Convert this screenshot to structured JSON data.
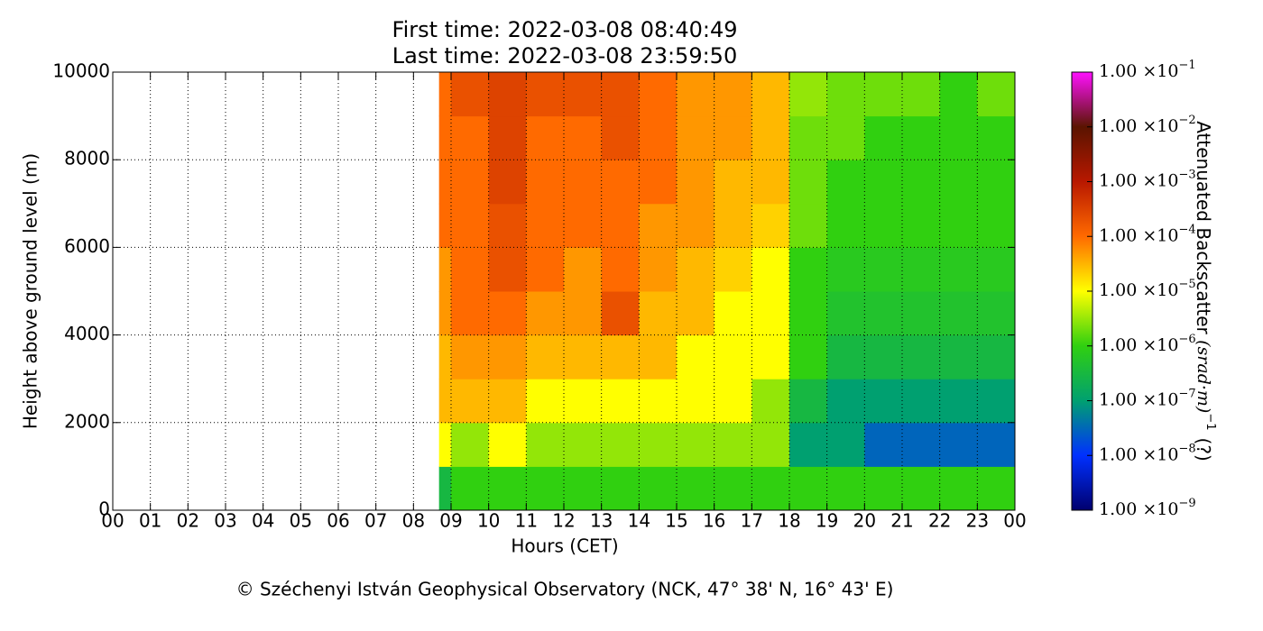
{
  "chart_data": {
    "type": "heatmap",
    "title": "First time: 2022-03-08 08:40:49",
    "subtitle": "Last time: 2022-03-08 23:59:50",
    "x_label": "Hours (CET)",
    "y_label": "Height above ground level (m)",
    "caption": "© Széchenyi István Geophysical Observatory (NCK, 47° 38' N, 16° 43' E)",
    "xlim": [
      0,
      24
    ],
    "ylim": [
      0,
      10000
    ],
    "xticks": [
      {
        "value": 0,
        "label": "00"
      },
      {
        "value": 1,
        "label": "01"
      },
      {
        "value": 2,
        "label": "02"
      },
      {
        "value": 3,
        "label": "03"
      },
      {
        "value": 4,
        "label": "04"
      },
      {
        "value": 5,
        "label": "05"
      },
      {
        "value": 6,
        "label": "06"
      },
      {
        "value": 7,
        "label": "07"
      },
      {
        "value": 8,
        "label": "08"
      },
      {
        "value": 9,
        "label": "09"
      },
      {
        "value": 10,
        "label": "10"
      },
      {
        "value": 11,
        "label": "11"
      },
      {
        "value": 12,
        "label": "12"
      },
      {
        "value": 13,
        "label": "13"
      },
      {
        "value": 14,
        "label": "14"
      },
      {
        "value": 15,
        "label": "15"
      },
      {
        "value": 16,
        "label": "16"
      },
      {
        "value": 17,
        "label": "17"
      },
      {
        "value": 18,
        "label": "18"
      },
      {
        "value": 19,
        "label": "19"
      },
      {
        "value": 20,
        "label": "20"
      },
      {
        "value": 21,
        "label": "21"
      },
      {
        "value": 22,
        "label": "22"
      },
      {
        "value": 23,
        "label": "23"
      },
      {
        "value": 24,
        "label": "00"
      }
    ],
    "yticks": [
      0,
      2000,
      4000,
      6000,
      8000,
      10000
    ],
    "grid": true,
    "x_edges": [
      8.68,
      9,
      10,
      11,
      12,
      13,
      14,
      15,
      16,
      17,
      18,
      19,
      20,
      21,
      22,
      23,
      24
    ],
    "y_edges": [
      0,
      1000,
      2000,
      3000,
      4000,
      5000,
      6000,
      7000,
      8000,
      9000,
      10000
    ],
    "values": [
      [
        3e-07,
        1e-06,
        1e-06,
        1e-06,
        1e-06,
        1e-06,
        1e-06,
        1e-06,
        1e-06,
        1e-06,
        1e-06,
        1e-06,
        1e-06,
        1e-06,
        1e-06,
        1e-06
      ],
      [
        1e-05,
        3e-06,
        1e-05,
        3e-06,
        3e-06,
        3e-06,
        3e-06,
        3e-06,
        3e-06,
        3e-06,
        1e-07,
        1e-07,
        3e-08,
        3e-08,
        3e-08,
        3e-08
      ],
      [
        3e-05,
        3e-05,
        3e-05,
        1e-05,
        1e-05,
        1e-05,
        1e-05,
        1e-05,
        1e-05,
        3e-06,
        3e-07,
        1e-07,
        1e-07,
        1e-07,
        1e-07,
        1e-07
      ],
      [
        3e-05,
        5e-05,
        5e-05,
        3e-05,
        3e-05,
        3e-05,
        3e-05,
        1e-05,
        1e-05,
        1e-05,
        1e-06,
        3e-07,
        3e-07,
        3e-07,
        3e-07,
        3e-07
      ],
      [
        5e-05,
        0.0001,
        0.0001,
        5e-05,
        5e-05,
        0.0002,
        3e-05,
        3e-05,
        1e-05,
        1e-05,
        1e-06,
        5e-07,
        5e-07,
        5e-07,
        5e-07,
        5e-07
      ],
      [
        5e-05,
        0.0001,
        0.0002,
        0.0001,
        5e-05,
        0.0001,
        5e-05,
        3e-05,
        2e-05,
        1e-05,
        1e-06,
        7e-07,
        7e-07,
        7e-07,
        7e-07,
        7e-07
      ],
      [
        0.0001,
        0.0001,
        0.0002,
        0.0001,
        0.0001,
        0.0001,
        5e-05,
        5e-05,
        3e-05,
        2e-05,
        2e-06,
        1e-06,
        1e-06,
        1e-06,
        1e-06,
        1e-06
      ],
      [
        0.0001,
        0.0001,
        0.0003,
        0.0001,
        0.0001,
        0.0001,
        0.0001,
        5e-05,
        3e-05,
        3e-05,
        2e-06,
        1e-06,
        1e-06,
        1e-06,
        1e-06,
        1e-06
      ],
      [
        0.0001,
        0.0001,
        0.0003,
        0.0001,
        0.0001,
        0.0002,
        0.0001,
        5e-05,
        5e-05,
        3e-05,
        2e-06,
        2e-06,
        1e-06,
        1e-06,
        1e-06,
        1e-06
      ],
      [
        0.0001,
        0.0002,
        0.0003,
        0.0002,
        0.0002,
        0.0002,
        0.0001,
        5e-05,
        5e-05,
        3e-05,
        3e-06,
        2e-06,
        2e-06,
        2e-06,
        1e-06,
        2e-06
      ]
    ],
    "colorbar_ticks": [
      {
        "value": 1e-09,
        "label": "1.00 ×10",
        "exponent": "−9"
      },
      {
        "value": 1e-08,
        "label": "1.00 ×10",
        "exponent": "−8"
      },
      {
        "value": 1e-07,
        "label": "1.00 ×10",
        "exponent": "−7"
      },
      {
        "value": 1e-06,
        "label": "1.00 ×10",
        "exponent": "−6"
      },
      {
        "value": 1e-05,
        "label": "1.00 ×10",
        "exponent": "−5"
      },
      {
        "value": 0.0001,
        "label": "1.00 ×10",
        "exponent": "−4"
      },
      {
        "value": 0.001,
        "label": "1.00 ×10",
        "exponent": "−3"
      },
      {
        "value": 0.01,
        "label": "1.00 ×10",
        "exponent": "−2"
      },
      {
        "value": 0.1,
        "label": "1.00 ×10",
        "exponent": "−1"
      }
    ],
    "colorbar_lim": [
      1e-09,
      0.1
    ],
    "colorbar_log": true,
    "colormap": [
      "#00006e",
      "#0030ff",
      "#00a070",
      "#30d010",
      "#ffff00",
      "#ff6a00",
      "#b81800",
      "#5a1400",
      "#ff10ff"
    ],
    "colorbar_label": "Attenuated Backscatter",
    "colorbar_unit": "(srad·m)",
    "colorbar_unit_exponent": "−1",
    "colorbar_suffix": "(?)"
  }
}
